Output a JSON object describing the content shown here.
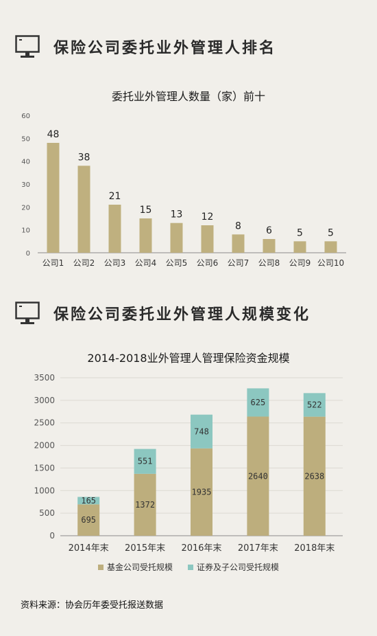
{
  "section1": {
    "title": "保险公司委托业外管理人排名",
    "icon": "monitor-icon"
  },
  "section2": {
    "title": "保险公司委托业外管理人规模变化",
    "icon": "monitor-icon"
  },
  "source": "资料来源：协会历年委受托报送数据",
  "colors": {
    "bar": "#bfb07f",
    "teal": "#8cc7c0",
    "base": "#bdae7d",
    "grid": "#dcd9d2",
    "axis": "#8a8a8a"
  },
  "chart_data": [
    {
      "type": "bar",
      "title": "委托业外管理人数量（家）前十",
      "categories": [
        "公司1",
        "公司2",
        "公司3",
        "公司4",
        "公司5",
        "公司6",
        "公司7",
        "公司8",
        "公司9",
        "公司10"
      ],
      "values": [
        48,
        38,
        21,
        15,
        13,
        12,
        8,
        6,
        5,
        5
      ],
      "ylim": [
        0,
        60
      ],
      "yticks": [
        0,
        10,
        20,
        30,
        40,
        50,
        60
      ],
      "grid": false,
      "legend": "none"
    },
    {
      "type": "bar",
      "stacked": true,
      "title": "2014-2018业外管理人管理保险资金规模",
      "categories": [
        "2014年末",
        "2015年末",
        "2016年末",
        "2017年末",
        "2018年末"
      ],
      "series": [
        {
          "name": "基金公司受托规模",
          "values": [
            695,
            1372,
            1935,
            2640,
            2638
          ]
        },
        {
          "name": "证券及子公司受托规模",
          "values": [
            165,
            551,
            748,
            625,
            522
          ]
        }
      ],
      "ylim": [
        0,
        3500
      ],
      "yticks": [
        0,
        500,
        1000,
        1500,
        2000,
        2500,
        3000,
        3500
      ],
      "grid": true,
      "legend": "bottom"
    }
  ]
}
